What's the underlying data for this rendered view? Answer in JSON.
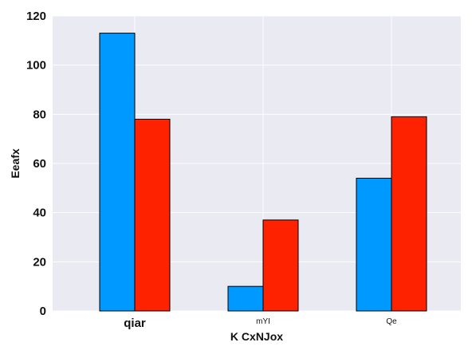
{
  "chart_data": {
    "type": "bar",
    "categories": [
      "qiar",
      "mYI",
      "Qe"
    ],
    "series": [
      {
        "values": [
          113,
          10,
          54
        ],
        "color": "#0099ff"
      },
      {
        "values": [
          78,
          37,
          79
        ],
        "color": "#ff2200"
      }
    ],
    "title": "",
    "xlabel": "K CxNJox",
    "ylabel": "Eeafx",
    "ylim": [
      0,
      120
    ],
    "yticks": [
      0,
      20,
      40,
      60,
      80,
      100,
      120
    ],
    "grid": true,
    "plot_background": "#eaeaf2",
    "legend": "none"
  }
}
